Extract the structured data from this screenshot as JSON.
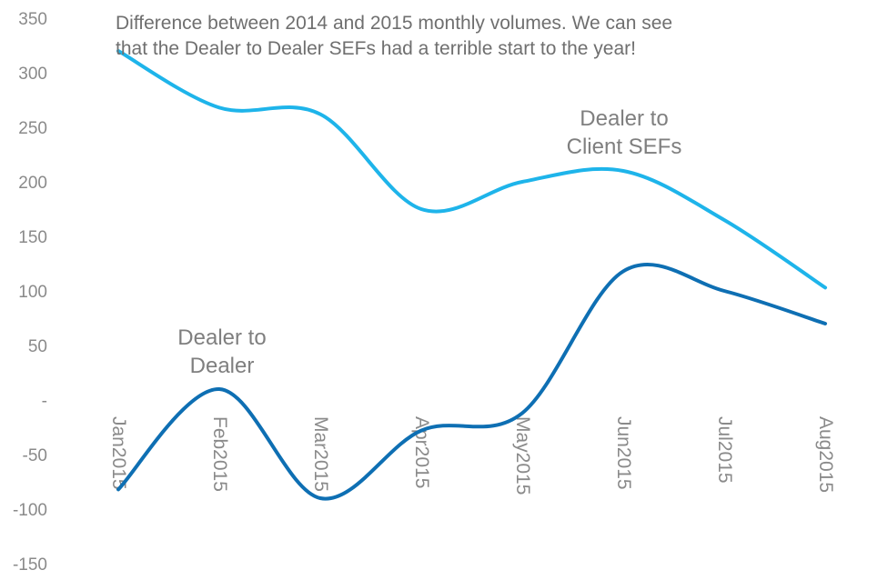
{
  "chart_data": {
    "type": "line",
    "title_lines": [
      "Difference between 2014 and 2015 monthly volumes. We can see",
      "that the Dealer to Dealer SEFs had a terrible start to the year!"
    ],
    "xlabel": "",
    "ylabel": "",
    "ylim": [
      -150,
      350
    ],
    "yticks": [
      350,
      300,
      250,
      200,
      150,
      100,
      50,
      0,
      -50,
      -100,
      -150
    ],
    "ytick_labels": [
      "350",
      "300",
      "250",
      "200",
      "150",
      "100",
      "50",
      "-",
      "-50",
      "-100",
      "-150"
    ],
    "categories": [
      "Jan2015",
      "Feb2015",
      "Mar2015",
      "Apr2015",
      "May2015",
      "Jun2015",
      "Jul2015",
      "Aug2015"
    ],
    "grid": false,
    "legend": "none",
    "series": [
      {
        "label_lines": [
          "Dealer to",
          "Client SEFs"
        ],
        "color": "#1eb4ea",
        "values": [
          320,
          268,
          262,
          175,
          200,
          210,
          165,
          103
        ]
      },
      {
        "label_lines": [
          "Dealer to",
          "Dealer"
        ],
        "color": "#0e6fb3",
        "values": [
          -82,
          10,
          -90,
          -28,
          -12,
          118,
          100,
          70
        ]
      }
    ]
  }
}
